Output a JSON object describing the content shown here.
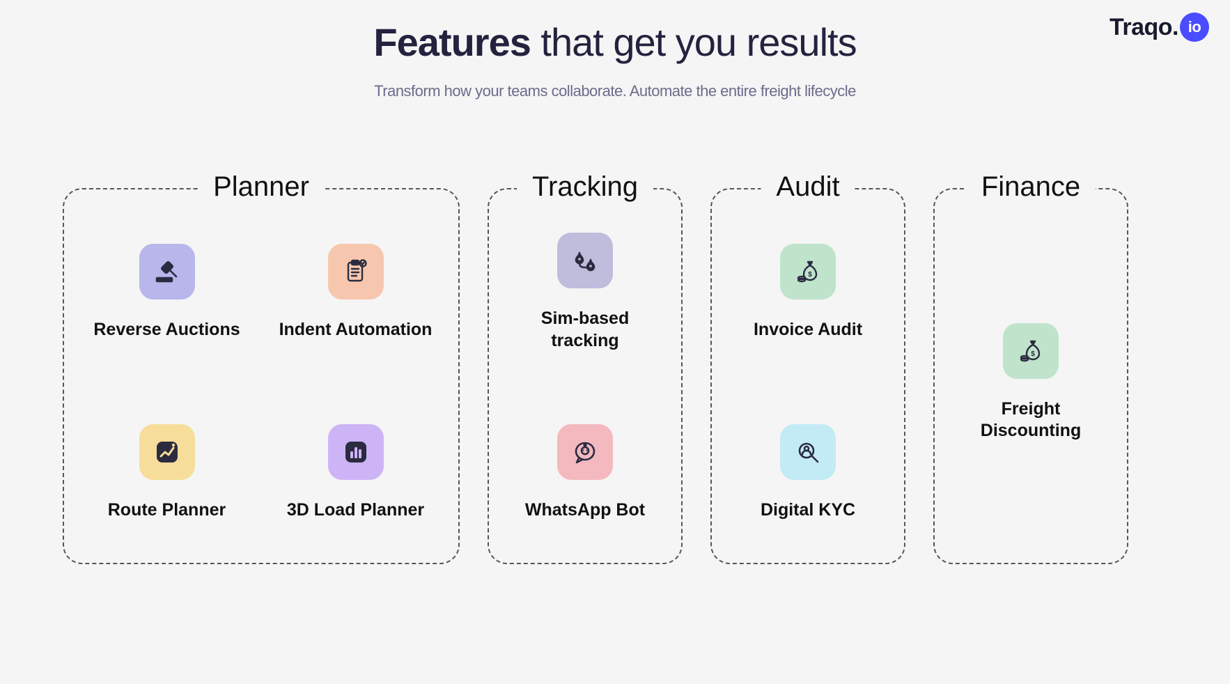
{
  "brand": {
    "name": "Traqo.",
    "badge": "io",
    "badge_bg": "#4b4bff"
  },
  "hero": {
    "title_bold": "Features",
    "title_rest": " that get you results",
    "subtitle": "Transform how your teams collaborate. Automate the entire freight lifecycle"
  },
  "colors": {
    "page_bg": "#f5f5f5",
    "dash_border": "#55555a",
    "heading": "#23233f",
    "subtitle": "#6b6b8c",
    "icon_stroke": "#2b2b40"
  },
  "groups": [
    {
      "key": "planner",
      "label": "Planner",
      "layout": "cols2",
      "features": [
        {
          "key": "reverse-auctions",
          "label": "Reverse Auctions",
          "icon": "gavel",
          "tile_bg": "#b9b6ec"
        },
        {
          "key": "indent-automation",
          "label": "Indent Automation",
          "icon": "clipboard-check",
          "tile_bg": "#f6c7ae"
        },
        {
          "key": "route-planner",
          "label": "Route Planner",
          "icon": "chart-up",
          "tile_bg": "#f6dd9a"
        },
        {
          "key": "3d-load-planner",
          "label": "3D Load Planner",
          "icon": "bar-chart",
          "tile_bg": "#cdb4f6"
        }
      ]
    },
    {
      "key": "tracking",
      "label": "Tracking",
      "layout": "cols1",
      "features": [
        {
          "key": "sim-tracking",
          "label": "Sim-based tracking",
          "icon": "route-pins",
          "tile_bg": "#bfbcdc"
        },
        {
          "key": "whatsapp-bot",
          "label": "WhatsApp Bot",
          "icon": "chat-bot",
          "tile_bg": "#f3b9bf"
        }
      ]
    },
    {
      "key": "audit",
      "label": "Audit",
      "layout": "cols1",
      "features": [
        {
          "key": "invoice-audit",
          "label": "Invoice Audit",
          "icon": "money-bag",
          "tile_bg": "#bfe3cb"
        },
        {
          "key": "digital-kyc",
          "label": "Digital KYC",
          "icon": "person-search",
          "tile_bg": "#c3ebf6"
        }
      ]
    },
    {
      "key": "finance",
      "label": "Finance",
      "layout": "single",
      "features": [
        {
          "key": "freight-discounting",
          "label": "Freight Discounting",
          "icon": "money-bag",
          "tile_bg": "#bfe3cb"
        }
      ]
    }
  ]
}
